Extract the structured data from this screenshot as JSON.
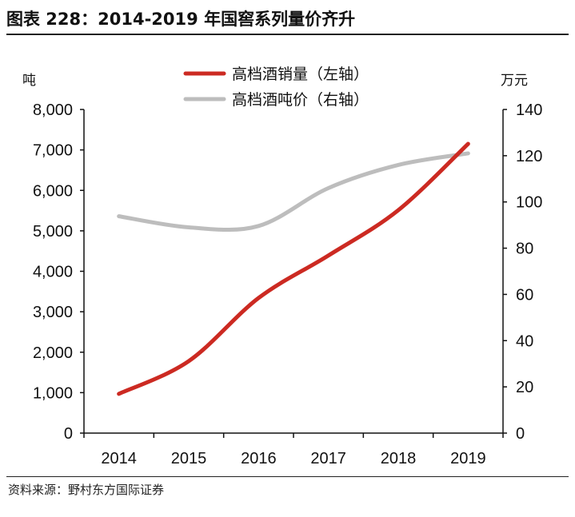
{
  "title": "图表 228：2014-2019 年国窖系列量价齐升",
  "source": "资料来源：野村东方国际证券",
  "chart_data": {
    "type": "line",
    "categories": [
      "2014",
      "2015",
      "2016",
      "2017",
      "2018",
      "2019"
    ],
    "left_axis": {
      "unit": "吨",
      "range": [
        0,
        8000
      ],
      "ticks": [
        "0",
        "1,000",
        "2,000",
        "3,000",
        "4,000",
        "5,000",
        "6,000",
        "7,000",
        "8,000"
      ]
    },
    "right_axis": {
      "unit": "万元",
      "range": [
        0,
        140
      ],
      "ticks": [
        "0",
        "20",
        "40",
        "60",
        "80",
        "100",
        "120",
        "140"
      ]
    },
    "series": [
      {
        "name": "高档酒销量（左轴）",
        "axis": "left",
        "color": "#cc2a22",
        "values": [
          970,
          1780,
          3340,
          4390,
          5510,
          7150
        ]
      },
      {
        "name": "高档酒吨价（右轴）",
        "axis": "right",
        "color": "#bdbdbd",
        "values": [
          93.8,
          89,
          89.6,
          106,
          116,
          121
        ]
      }
    ],
    "legend": "top-center",
    "grid": false,
    "smooth": true
  }
}
